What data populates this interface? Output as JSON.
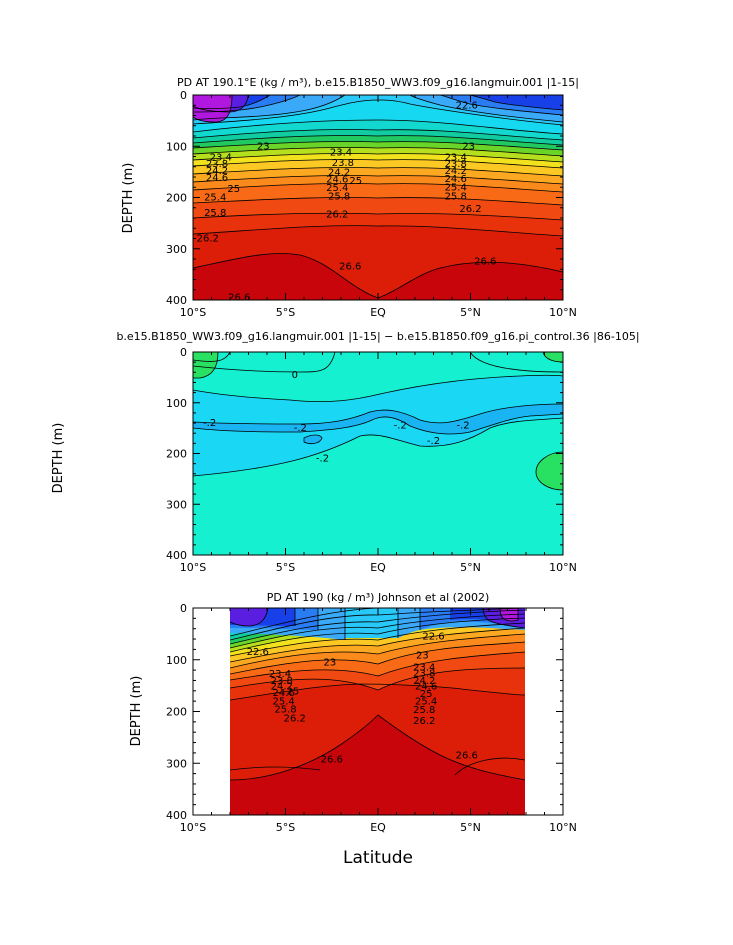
{
  "chart_data": [
    {
      "type": "contour",
      "title": "PD AT 190.1°E (kg / m³), b.e15.B1850_WW3.f09_g16.langmuir.001 |1-15|",
      "xlabel": "",
      "ylabel": "DEPTH (m)",
      "xlim": [
        -10,
        10
      ],
      "ylim": [
        400,
        0
      ],
      "xtick_labels": [
        "10°S",
        "5°S",
        "EQ",
        "5°N",
        "10°N"
      ],
      "ytick_labels": [
        "0",
        "100",
        "200",
        "300",
        "400"
      ],
      "contour_interval": 0.2,
      "contour_labels": [
        {
          "text": "22.6",
          "lat": 4.8,
          "depth": 20
        },
        {
          "text": "23",
          "lat": -6.2,
          "depth": 100
        },
        {
          "text": "23",
          "lat": 4.9,
          "depth": 100
        },
        {
          "text": "23.4",
          "lat": -8.5,
          "depth": 122
        },
        {
          "text": "23.4",
          "lat": -2.0,
          "depth": 112
        },
        {
          "text": "23.4",
          "lat": 4.2,
          "depth": 122
        },
        {
          "text": "23.8",
          "lat": -8.7,
          "depth": 135
        },
        {
          "text": "23.8",
          "lat": -1.9,
          "depth": 133
        },
        {
          "text": "23.8",
          "lat": 4.2,
          "depth": 135
        },
        {
          "text": "24.2",
          "lat": -8.7,
          "depth": 148
        },
        {
          "text": "24.2",
          "lat": -2.1,
          "depth": 151
        },
        {
          "text": "24.2",
          "lat": 4.2,
          "depth": 148
        },
        {
          "text": "24.6",
          "lat": -8.7,
          "depth": 162
        },
        {
          "text": "24.6",
          "lat": -2.2,
          "depth": 165
        },
        {
          "text": "25",
          "lat": -1.2,
          "depth": 168
        },
        {
          "text": "24.6",
          "lat": 4.2,
          "depth": 164
        },
        {
          "text": "25",
          "lat": -7.8,
          "depth": 183
        },
        {
          "text": "25.4",
          "lat": -2.2,
          "depth": 181
        },
        {
          "text": "25.4",
          "lat": 4.2,
          "depth": 180
        },
        {
          "text": "25.4",
          "lat": -8.8,
          "depth": 200
        },
        {
          "text": "25.8",
          "lat": -2.1,
          "depth": 198
        },
        {
          "text": "25.8",
          "lat": 4.2,
          "depth": 198
        },
        {
          "text": "25.8",
          "lat": -8.8,
          "depth": 230
        },
        {
          "text": "26.2",
          "lat": -2.2,
          "depth": 233
        },
        {
          "text": "26.2",
          "lat": 5.0,
          "depth": 222
        },
        {
          "text": "26.2",
          "lat": -9.2,
          "depth": 280
        },
        {
          "text": "26.6",
          "lat": -1.5,
          "depth": 335
        },
        {
          "text": "26.6",
          "lat": 5.8,
          "depth": 325
        },
        {
          "text": "26.6",
          "lat": -7.5,
          "depth": 395
        }
      ]
    },
    {
      "type": "contour",
      "title": "b.e15.B1850_WW3.f09_g16.langmuir.001 |1-15| − b.e15.B1850.f09_g16.pi_control.36 |86-105|",
      "xlabel": "",
      "ylabel": "DEPTH (m)",
      "xlim": [
        -10,
        10
      ],
      "ylim": [
        400,
        0
      ],
      "xtick_labels": [
        "10°S",
        "5°S",
        "EQ",
        "5°N",
        "10°N"
      ],
      "ytick_labels": [
        "0",
        "100",
        "200",
        "300",
        "400"
      ],
      "contour_interval": 0.2,
      "contour_labels": [
        {
          "text": "0",
          "lat": -4.5,
          "depth": 45
        },
        {
          "text": "-.2",
          "lat": -9.1,
          "depth": 140
        },
        {
          "text": "-.2",
          "lat": -4.2,
          "depth": 150
        },
        {
          "text": "-.2",
          "lat": 1.2,
          "depth": 145
        },
        {
          "text": "-.2",
          "lat": 3.0,
          "depth": 175
        },
        {
          "text": "-.2",
          "lat": 4.6,
          "depth": 145
        },
        {
          "text": "-.2",
          "lat": -3.0,
          "depth": 210
        }
      ]
    },
    {
      "type": "contour",
      "title": "PD AT 190 (kg / m³) Johnson et al (2002)",
      "xlabel": "Latitude",
      "ylabel": "DEPTH (m)",
      "xlim": [
        -10,
        10
      ],
      "ylim": [
        400,
        0
      ],
      "data_lat_range": [
        -8,
        8
      ],
      "xtick_labels": [
        "10°S",
        "5°S",
        "EQ",
        "5°N",
        "10°N"
      ],
      "ytick_labels": [
        "0",
        "100",
        "200",
        "300",
        "400"
      ],
      "contour_interval": 0.2,
      "contour_labels": [
        {
          "text": "22.6",
          "lat": -6.5,
          "depth": 85
        },
        {
          "text": "22.6",
          "lat": 3.0,
          "depth": 55
        },
        {
          "text": "23",
          "lat": -2.6,
          "depth": 105
        },
        {
          "text": "23",
          "lat": 2.4,
          "depth": 92
        },
        {
          "text": "23.4",
          "lat": -5.3,
          "depth": 128
        },
        {
          "text": "23.4",
          "lat": 2.5,
          "depth": 115
        },
        {
          "text": "23.8",
          "lat": -5.2,
          "depth": 141
        },
        {
          "text": "23.8",
          "lat": 2.5,
          "depth": 127
        },
        {
          "text": "24.2",
          "lat": -5.2,
          "depth": 152
        },
        {
          "text": "24.2",
          "lat": 2.5,
          "depth": 141
        },
        {
          "text": "24.6",
          "lat": -5.1,
          "depth": 164
        },
        {
          "text": "24.6",
          "lat": 2.6,
          "depth": 152
        },
        {
          "text": "25",
          "lat": -4.6,
          "depth": 161
        },
        {
          "text": "25",
          "lat": 2.6,
          "depth": 166
        },
        {
          "text": "25.4",
          "lat": -5.1,
          "depth": 181
        },
        {
          "text": "25.4",
          "lat": 2.6,
          "depth": 181
        },
        {
          "text": "25.8",
          "lat": -5.0,
          "depth": 196
        },
        {
          "text": "25.8",
          "lat": 2.5,
          "depth": 197
        },
        {
          "text": "26.2",
          "lat": -4.5,
          "depth": 214
        },
        {
          "text": "26.2",
          "lat": 2.5,
          "depth": 218
        },
        {
          "text": "26.6",
          "lat": -2.5,
          "depth": 293
        },
        {
          "text": "26.6",
          "lat": 4.8,
          "depth": 285
        }
      ]
    }
  ]
}
